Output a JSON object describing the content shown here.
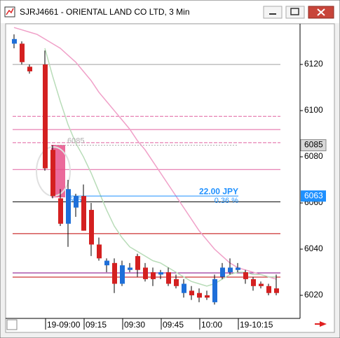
{
  "window_title": "SJRJ4661 - ORIENTAL LAND CO LTD, 3 Min",
  "chart_data": {
    "type": "candlestick",
    "categories": [
      null,
      null,
      null,
      null,
      "19-09:00",
      null,
      null,
      null,
      null,
      "09:15",
      null,
      null,
      null,
      null,
      "09:30",
      null,
      null,
      null,
      null,
      "09:45",
      null,
      null,
      null,
      null,
      "10:00",
      null,
      null,
      null,
      null,
      "19-10:15",
      null,
      null,
      null,
      null,
      null
    ],
    "open": [
      6129,
      6129,
      6119,
      null,
      6120,
      6083,
      6062,
      6051,
      6058,
      6063,
      6057,
      6042,
      6033,
      6034,
      6025,
      6031,
      6037,
      6032,
      6030,
      6029,
      6030,
      6027,
      6021,
      6022,
      6021,
      6020,
      6017,
      6028,
      6030,
      6031,
      6030,
      6027,
      6025,
      6024,
      6023
    ],
    "high": [
      6133,
      6130,
      6120,
      null,
      6126,
      6085,
      6066,
      6070,
      6064,
      6068,
      6060,
      6045,
      6036,
      6036,
      6035,
      6034,
      6038,
      6034,
      6032,
      6031,
      6032,
      6029,
      6027,
      6024,
      6023,
      6022,
      6029,
      6034,
      6036,
      6034,
      6031,
      6028,
      6026,
      6025,
      6029
    ],
    "low": [
      6127,
      6120,
      6116,
      null,
      6074,
      6062,
      6050,
      6041,
      6054,
      6048,
      6037,
      6035,
      6030,
      6021,
      6024,
      6030,
      6028,
      6026,
      6024,
      6027,
      6024,
      6023,
      6019,
      6018,
      6017,
      6018,
      6016,
      6027,
      6029,
      6030,
      6025,
      6022,
      6023,
      6020,
      6020
    ],
    "close": [
      6131,
      6121,
      6117,
      null,
      6075,
      6063,
      6051,
      6066,
      6063,
      6048,
      6042,
      6036,
      6035,
      6025,
      6033,
      6032,
      6031,
      6027,
      6027,
      6030,
      6025,
      6024,
      6025,
      6020,
      6019,
      6019,
      6027,
      6032,
      6032,
      6032,
      6027,
      6024,
      6024,
      6021,
      6021
    ],
    "up_color": "#1e6fd9",
    "down_color": "#d42020",
    "moving_averages": [
      {
        "color": "#f0a0c8",
        "values": [
          6136,
          6135,
          6134,
          6133,
          6131,
          6129,
          6127,
          6124,
          6121,
          6117,
          6113,
          6108,
          6104,
          6100,
          6096,
          6092,
          6087,
          6083,
          6078,
          6073,
          6068,
          6063,
          6058,
          6053,
          6048,
          6044,
          6040,
          6037,
          6034,
          6032,
          6031,
          6030,
          6029,
          6028,
          6027
        ]
      },
      {
        "color": "#b8dcb8",
        "values": [
          null,
          null,
          null,
          null,
          6127,
          6115,
          6104,
          6094,
          6086,
          6080,
          6073,
          6065,
          6057,
          6050,
          6045,
          6041,
          6039,
          6037,
          6035,
          6034,
          6032,
          6030,
          6028,
          6026,
          6025,
          6024,
          6025,
          6027,
          6029,
          6030,
          6030,
          6029,
          6029,
          6028,
          6028
        ]
      }
    ],
    "levels": [
      {
        "value": 6120,
        "color": "#a0a0a0",
        "dashed": false
      },
      {
        "value": 6097.5,
        "color": "#e060a0",
        "dashed": true
      },
      {
        "value": 6091.8,
        "color": "#e060a0",
        "dashed": false
      },
      {
        "value": 6086.1,
        "color": "#e060a0",
        "dashed": true
      },
      {
        "value": 6074.5,
        "color": "#e060a0",
        "dashed": false
      },
      {
        "value": 6060.5,
        "color": "#000000",
        "dashed": false
      },
      {
        "value": 6046.7,
        "color": "#c00000",
        "dashed": false
      },
      {
        "value": 6029.7,
        "color": "#800080",
        "dashed": false
      },
      {
        "value": 6027.9,
        "color": "#c00000",
        "dashed": false
      }
    ],
    "measure": {
      "from": 6085,
      "to": 6063,
      "change_label": "22.00 JPY",
      "percent_label": "0.36 %",
      "color": "#1e90ff"
    },
    "ylim": [
      6010,
      6137.3
    ],
    "yticks": [
      6020,
      6040,
      6060,
      6080,
      6100,
      6120
    ]
  }
}
